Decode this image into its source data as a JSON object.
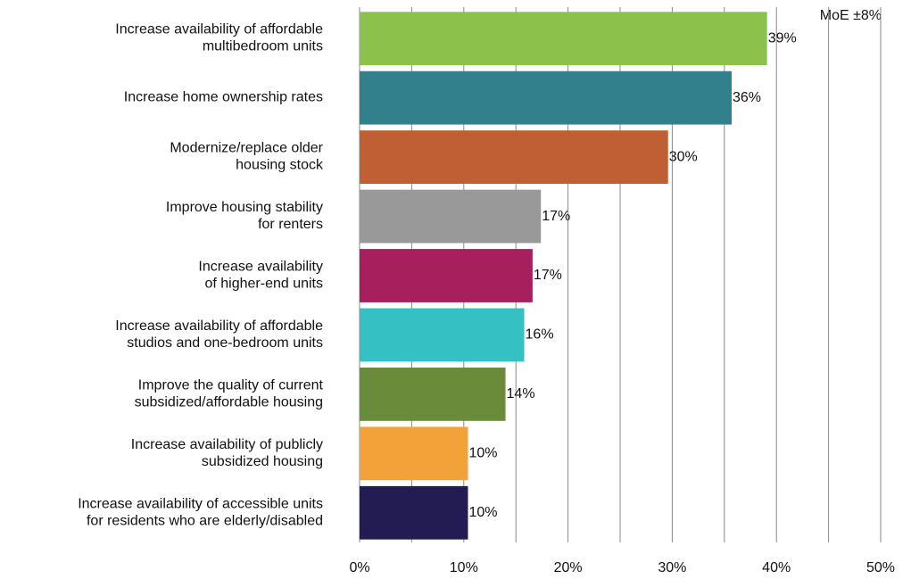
{
  "chart_data": {
    "type": "barh",
    "annotation": "MoE ±8%",
    "categories": [
      "Increase availability of affordable\nmultibedroom units",
      "Increase home ownership rates",
      "Modernize/replace older\nhousing stock",
      "Improve housing stability\nfor renters",
      "Increase availability\nof higher-end units",
      "Increase availability of affordable\nstudios and one-bedroom units",
      "Improve the quality of current\nsubsidized/affordable housing",
      "Increase availability of publicly\nsubsidized housing",
      "Increase availability of accessible units\nfor residents who are elderly/disabled"
    ],
    "values": [
      39.1,
      35.7,
      29.6,
      17.4,
      16.6,
      15.8,
      14.0,
      10.4,
      10.4
    ],
    "value_labels": [
      "39%",
      "36%",
      "30%",
      "17%",
      "17%",
      "16%",
      "14%",
      "10%",
      "10%"
    ],
    "colors": [
      "#8cc24b",
      "#31808c",
      "#c05f33",
      "#999999",
      "#a81f5e",
      "#35c0c4",
      "#6a8b3a",
      "#f3a23a",
      "#221c52"
    ],
    "xlim": [
      0,
      50
    ],
    "xticks": [
      {
        "value": 0,
        "label": "0%"
      },
      {
        "value": 10,
        "label": "10%"
      },
      {
        "value": 20,
        "label": "20%"
      },
      {
        "value": 30,
        "label": "30%"
      },
      {
        "value": 40,
        "label": "40%"
      },
      {
        "value": 50,
        "label": "50%"
      }
    ],
    "xminor": [
      5,
      15,
      25,
      35,
      45
    ],
    "grid": true
  }
}
